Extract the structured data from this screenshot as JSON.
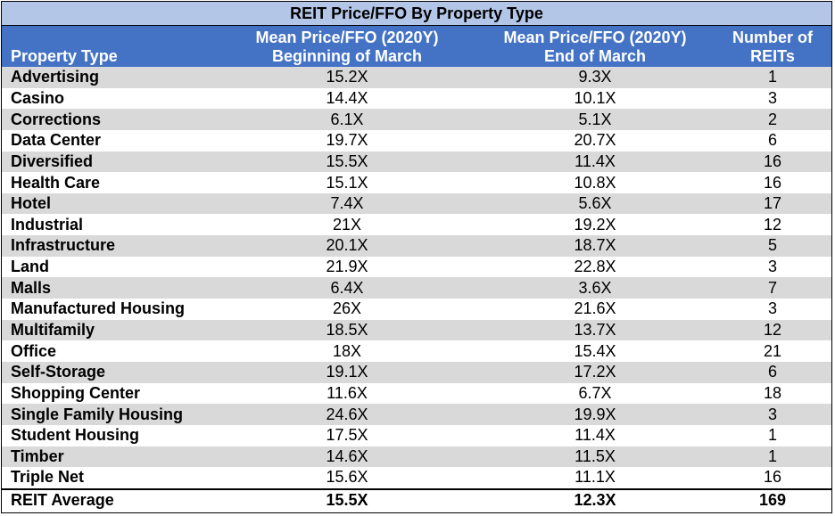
{
  "chart_data": {
    "type": "table",
    "title": "REIT Price/FFO By Property Type",
    "columns": [
      {
        "line1": "",
        "line2": "Property Type"
      },
      {
        "line1": "Mean Price/FFO (2020Y)",
        "line2": "Beginning of March"
      },
      {
        "line1": "Mean Price/FFO (2020Y)",
        "line2": "End of March"
      },
      {
        "line1": "Number of",
        "line2": "REITs"
      }
    ],
    "rows": [
      {
        "type": "Advertising",
        "begin": "15.2X",
        "end": "9.3X",
        "count": "1"
      },
      {
        "type": "Casino",
        "begin": "14.4X",
        "end": "10.1X",
        "count": "3"
      },
      {
        "type": "Corrections",
        "begin": "6.1X",
        "end": "5.1X",
        "count": "2"
      },
      {
        "type": "Data Center",
        "begin": "19.7X",
        "end": "20.7X",
        "count": "6"
      },
      {
        "type": "Diversified",
        "begin": "15.5X",
        "end": "11.4X",
        "count": "16"
      },
      {
        "type": "Health Care",
        "begin": "15.1X",
        "end": "10.8X",
        "count": "16"
      },
      {
        "type": "Hotel",
        "begin": "7.4X",
        "end": "5.6X",
        "count": "17"
      },
      {
        "type": "Industrial",
        "begin": "21X",
        "end": "19.2X",
        "count": "12"
      },
      {
        "type": "Infrastructure",
        "begin": "20.1X",
        "end": "18.7X",
        "count": "5"
      },
      {
        "type": "Land",
        "begin": "21.9X",
        "end": "22.8X",
        "count": "3"
      },
      {
        "type": "Malls",
        "begin": "6.4X",
        "end": "3.6X",
        "count": "7"
      },
      {
        "type": "Manufactured Housing",
        "begin": "26X",
        "end": "21.6X",
        "count": "3"
      },
      {
        "type": "Multifamily",
        "begin": "18.5X",
        "end": "13.7X",
        "count": "12"
      },
      {
        "type": "Office",
        "begin": "18X",
        "end": "15.4X",
        "count": "21"
      },
      {
        "type": "Self-Storage",
        "begin": "19.1X",
        "end": "17.2X",
        "count": "6"
      },
      {
        "type": "Shopping Center",
        "begin": "11.6X",
        "end": "6.7X",
        "count": "18"
      },
      {
        "type": "Single Family Housing",
        "begin": "24.6X",
        "end": "19.9X",
        "count": "3"
      },
      {
        "type": "Student Housing",
        "begin": "17.5X",
        "end": "11.4X",
        "count": "1"
      },
      {
        "type": "Timber",
        "begin": "14.6X",
        "end": "11.5X",
        "count": "1"
      },
      {
        "type": "Triple Net",
        "begin": "15.6X",
        "end": "11.1X",
        "count": "16"
      }
    ],
    "total": {
      "type": "REIT Average",
      "begin": "15.5X",
      "end": "12.3X",
      "count": "169"
    }
  },
  "colors": {
    "title_bg": "#b4c6e7",
    "header_bg": "#4472c4",
    "header_text": "#ffffff",
    "band_bg": "#d9d9d9"
  }
}
